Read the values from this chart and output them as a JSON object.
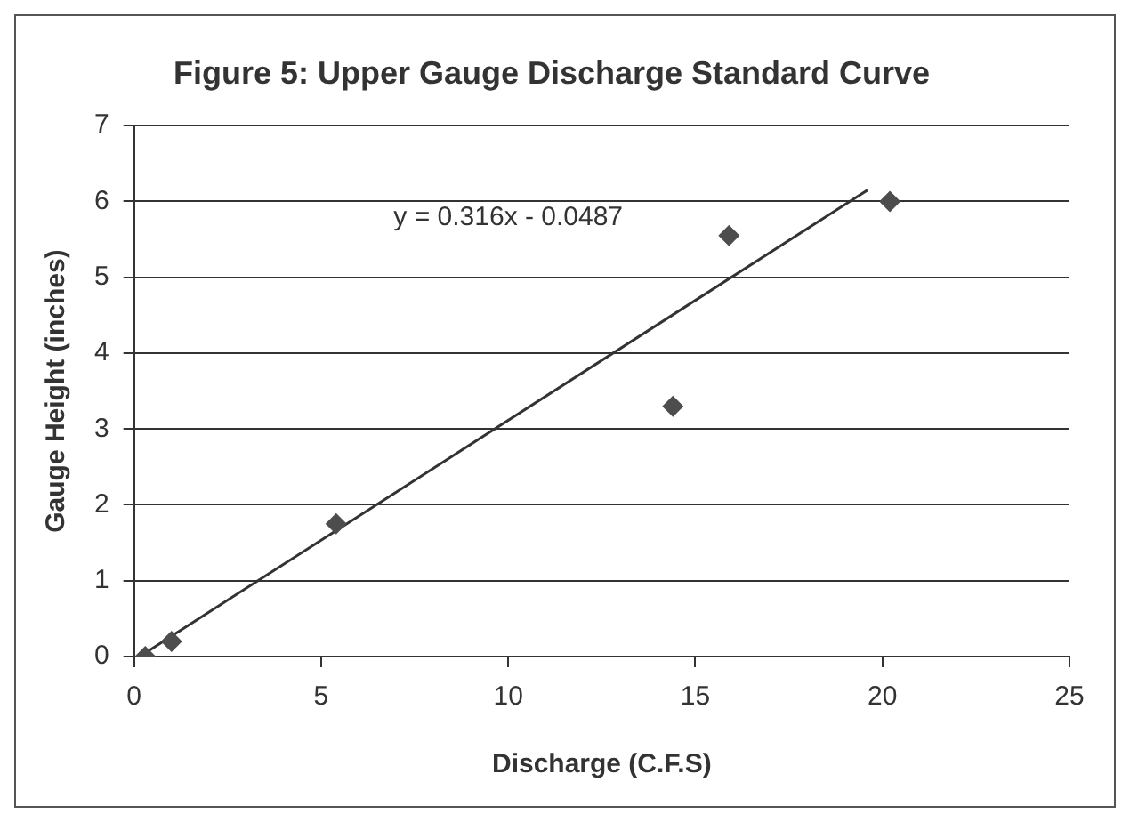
{
  "chart_data": {
    "type": "scatter",
    "title": "Figure 5: Upper Gauge Discharge Standard Curve",
    "xlabel": "Discharge (C.F.S)",
    "ylabel": "Gauge Height (inches)",
    "series": [
      {
        "type": "scatter",
        "color": "#4d4d4d",
        "marker": "diamond",
        "x": [
          0.3,
          1.0,
          5.4,
          14.4,
          15.9,
          20.2
        ],
        "values": [
          0.0,
          0.2,
          1.75,
          3.3,
          5.55,
          6.0
        ]
      },
      {
        "type": "line",
        "color": "#333333",
        "marker": "none",
        "x": [
          0.4,
          19.6
        ],
        "values": [
          0.08,
          6.15
        ]
      }
    ],
    "annotations": [
      "y = 0.316x - 0.0487"
    ],
    "xlim": [
      0,
      25
    ],
    "xticks": [
      0,
      5,
      10,
      15,
      20,
      25
    ],
    "ylim": [
      0,
      7
    ],
    "yticks": [
      0,
      1,
      2,
      3,
      4,
      5,
      6,
      7
    ],
    "grid": "y",
    "legend": false
  }
}
